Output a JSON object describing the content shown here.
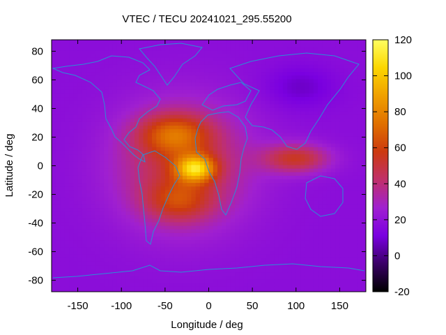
{
  "chart_data": {
    "type": "heatmap",
    "title": "VTEC / TECU 20241021_295.55200",
    "xlabel": "Longitude / deg",
    "ylabel": "Latitude / deg",
    "xlim": [
      -180,
      180
    ],
    "ylim": [
      -88,
      88
    ],
    "x_ticks": [
      -150,
      -100,
      -50,
      0,
      50,
      100,
      150
    ],
    "y_ticks": [
      -80,
      -60,
      -40,
      -20,
      0,
      20,
      40,
      60,
      80
    ],
    "colorbar": {
      "range": [
        -20,
        120
      ],
      "ticks": [
        -20,
        0,
        20,
        40,
        60,
        80,
        100,
        120
      ],
      "palette": [
        "#000000",
        "#3a0066",
        "#7a00e0",
        "#a020d0",
        "#c0306a",
        "#cc3a10",
        "#e07000",
        "#f0a000",
        "#fcd600",
        "#ffff60"
      ]
    },
    "features": {
      "background_level": 18,
      "equatorial_peak": {
        "lon": -15,
        "lat": -2,
        "value": 118
      },
      "northern_crest": {
        "lon": -40,
        "lat": 22,
        "value": 90
      },
      "southern_crest": {
        "lon": -35,
        "lat": -25,
        "value": 80
      },
      "southeast_asia_tongue": {
        "lon": 100,
        "lat": 5,
        "value": 55
      }
    },
    "overlay": "coastlines"
  }
}
